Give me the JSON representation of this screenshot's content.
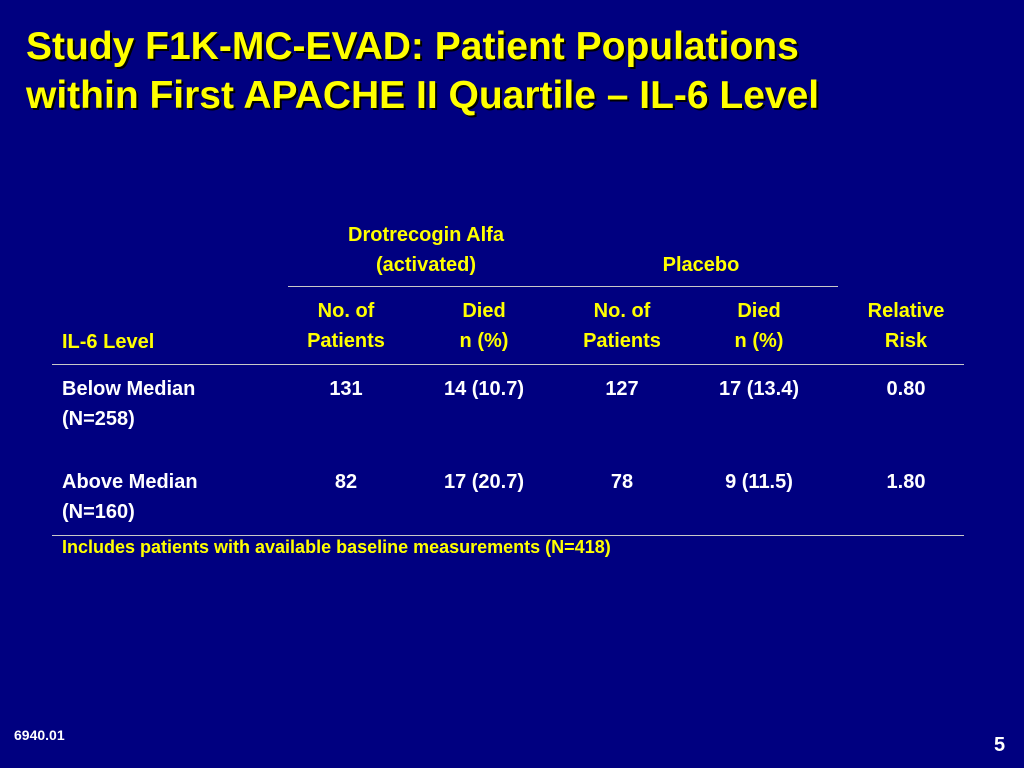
{
  "slide": {
    "title_line1": "Study F1K-MC-EVAD: Patient Populations",
    "title_line2": "within First APACHE II Quartile – IL-6 Level",
    "slide_code": "6940.01",
    "page_number": "5",
    "footnote": "Includes patients with available baseline measurements (N=418)"
  },
  "table": {
    "group_headers": {
      "drotrecogin_line1": "Drotrecogin Alfa",
      "drotrecogin_line2": "(activated)",
      "placebo": "Placebo"
    },
    "columns": {
      "il6_level": "IL-6 Level",
      "drot_patients_line1": "No. of",
      "drot_patients_line2": "Patients",
      "drot_died_line1": "Died",
      "drot_died_line2": "n  (%)",
      "plac_patients_line1": "No. of",
      "plac_patients_line2": "Patients",
      "plac_died_line1": "Died",
      "plac_died_line2": "n  (%)",
      "rr_line1": "Relative",
      "rr_line2": "Risk"
    },
    "rows": [
      {
        "label_line1": "Below Median",
        "label_line2": "(N=258)",
        "drot_patients": "131",
        "drot_died": "14  (10.7)",
        "plac_patients": "127",
        "plac_died": "17  (13.4)",
        "relative_risk": "0.80"
      },
      {
        "label_line1": "Above Median",
        "label_line2": "(N=160)",
        "drot_patients": "82",
        "drot_died": "17  (20.7)",
        "plac_patients": "78",
        "plac_died": "9  (11.5)",
        "relative_risk": "1.80"
      }
    ]
  }
}
